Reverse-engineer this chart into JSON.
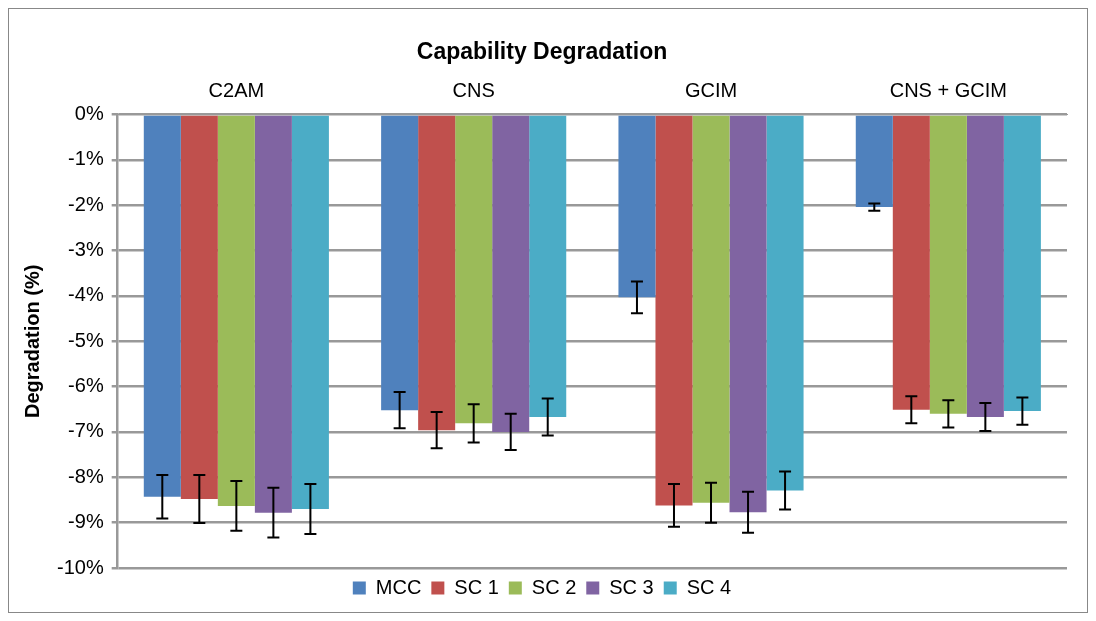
{
  "chart_data": {
    "type": "bar",
    "title": "Capability Degradation",
    "ylabel": "Degradation (%)",
    "categories": [
      "C2AM",
      "CNS",
      "GCIM",
      "CNS + GCIM"
    ],
    "series": [
      {
        "name": "MCC",
        "color": "#4f81bd",
        "values": [
          -8.43,
          -6.52,
          -4.03,
          -2.04
        ],
        "errors": [
          0.48,
          0.4,
          0.35,
          0.08
        ]
      },
      {
        "name": "SC 1",
        "color": "#c0504d",
        "values": [
          -8.48,
          -6.96,
          -8.62,
          -6.51
        ],
        "errors": [
          0.53,
          0.4,
          0.47,
          0.3
        ]
      },
      {
        "name": "SC 2",
        "color": "#9bbb59",
        "values": [
          -8.63,
          -6.81,
          -8.56,
          -6.6
        ],
        "errors": [
          0.55,
          0.42,
          0.44,
          0.3
        ]
      },
      {
        "name": "SC 3",
        "color": "#8064a2",
        "values": [
          -8.78,
          -7.0,
          -8.77,
          -6.67
        ],
        "errors": [
          0.55,
          0.4,
          0.45,
          0.31
        ]
      },
      {
        "name": "SC 4",
        "color": "#4bacc6",
        "values": [
          -8.7,
          -6.67,
          -8.29,
          -6.54
        ],
        "errors": [
          0.55,
          0.41,
          0.42,
          0.3
        ]
      }
    ],
    "ylim": [
      -10,
      0
    ],
    "yticks": [
      {
        "value": 0,
        "label": "0%"
      },
      {
        "value": -1,
        "label": "-1%"
      },
      {
        "value": -2,
        "label": "-2%"
      },
      {
        "value": -3,
        "label": "-3%"
      },
      {
        "value": -4,
        "label": "-4%"
      },
      {
        "value": -5,
        "label": "-5%"
      },
      {
        "value": -6,
        "label": "-6%"
      },
      {
        "value": -7,
        "label": "-7%"
      },
      {
        "value": -8,
        "label": "-8%"
      },
      {
        "value": -9,
        "label": "-9%"
      },
      {
        "value": -10,
        "label": "-10%"
      }
    ],
    "grid": "y",
    "legend": "bottom"
  }
}
